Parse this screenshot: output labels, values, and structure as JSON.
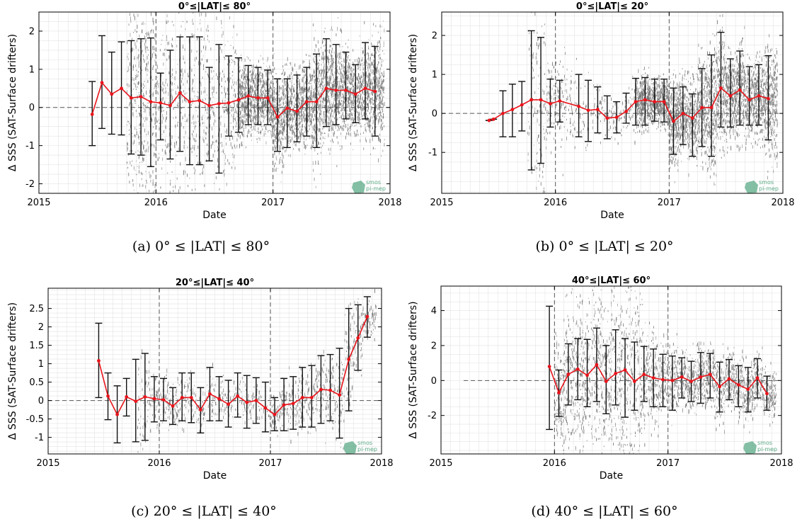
{
  "figure": {
    "captions": [
      "(a) 0° ≤ |LAT| ≤ 80°",
      "(b) 0° ≤ |LAT| ≤ 20°",
      "(c) 20° ≤ |LAT| ≤ 40°",
      "(d) 40° ≤ |LAT| ≤ 60°"
    ],
    "logo_text": [
      "smos",
      "pi-mep"
    ],
    "colors": {
      "line": "#e8141b",
      "errorbar": "#111111",
      "scatter": "#6e6e6e",
      "grid": "#e3e3e3",
      "logo": "#5aa985"
    }
  },
  "chart_data": [
    {
      "type": "line",
      "title": "0°≤|LAT|≤ 80°",
      "xlabel": "Date",
      "ylabel": "Δ SSS (SAT-Surface drifters)",
      "xlim": [
        "2015-01-01",
        "2018-01-01"
      ],
      "ylim": [
        -2.25,
        2.5
      ],
      "xticks": [
        "2015",
        "2016",
        "2017",
        "2018"
      ],
      "yticks": [
        -2,
        -1,
        0,
        1,
        2
      ],
      "ytick_labels": [
        "-2",
        "-1",
        "0",
        "1",
        "2"
      ],
      "grid": true,
      "vlines": [
        "2016-01-01",
        "2017-01-01"
      ],
      "hline": 0,
      "series": [
        {
          "x": [
            "2015-06-15",
            "2015-07-15",
            "2015-08-15",
            "2015-09-15",
            "2015-10-15",
            "2015-11-15",
            "2015-12-15",
            "2016-01-15",
            "2016-02-15",
            "2016-03-15",
            "2016-04-15",
            "2016-05-15",
            "2016-06-15",
            "2016-07-15",
            "2016-08-15",
            "2016-09-15",
            "2016-10-15",
            "2016-11-15",
            "2016-12-15",
            "2017-01-15",
            "2017-02-15",
            "2017-03-15",
            "2017-04-15",
            "2017-05-15",
            "2017-06-15",
            "2017-07-15",
            "2017-08-15",
            "2017-09-15",
            "2017-10-15",
            "2017-11-15"
          ],
          "y": [
            -0.18,
            0.65,
            0.35,
            0.5,
            0.25,
            0.28,
            0.15,
            0.12,
            0.05,
            0.38,
            0.15,
            0.18,
            0.05,
            0.1,
            0.12,
            0.2,
            0.3,
            0.25,
            0.25,
            -0.25,
            -0.02,
            -0.1,
            0.15,
            0.15,
            0.5,
            0.45,
            0.45,
            0.35,
            0.5,
            0.42
          ],
          "err_low": [
            -1.0,
            -0.55,
            -0.7,
            -0.72,
            -1.22,
            -1.25,
            -1.55,
            -0.85,
            -1.35,
            -1.15,
            -1.5,
            -1.5,
            -1.4,
            -1.72,
            -0.75,
            -0.65,
            -0.45,
            -0.45,
            -0.45,
            -1.15,
            -1.05,
            -0.9,
            -0.75,
            -1.05,
            -0.5,
            -0.45,
            -0.3,
            -0.4,
            -0.3,
            -0.75
          ],
          "err_high": [
            0.68,
            1.88,
            1.45,
            1.72,
            1.75,
            1.8,
            1.82,
            0.9,
            1.5,
            1.85,
            1.85,
            1.85,
            1.05,
            1.65,
            1.35,
            1.3,
            1.1,
            1.05,
            0.98,
            0.75,
            0.75,
            0.85,
            1.05,
            1.4,
            1.8,
            1.65,
            1.45,
            1.12,
            1.7,
            1.6
          ]
        }
      ]
    },
    {
      "type": "line",
      "title": "0°≤|LAT|≤ 20°",
      "xlabel": "Date",
      "ylabel": "Δ SSS (SAT-Surface drifters)",
      "xlim": [
        "2015-01-01",
        "2018-01-01"
      ],
      "ylim": [
        -2.05,
        2.6
      ],
      "xticks": [
        "2015",
        "2016",
        "2017",
        "2018"
      ],
      "yticks": [
        -1,
        0,
        1,
        2
      ],
      "ytick_labels": [
        "-1",
        "0",
        "1",
        "2"
      ],
      "grid": true,
      "vlines": [
        "2016-01-01",
        "2017-01-01"
      ],
      "hline": 0,
      "series": [
        {
          "x": [
            "2015-06-01",
            "2015-06-15",
            "2015-07-15",
            "2015-08-15",
            "2015-09-15",
            "2015-10-15",
            "2015-11-15",
            "2015-12-15",
            "2016-01-15",
            "2016-03-15",
            "2016-04-15",
            "2016-05-15",
            "2016-06-15",
            "2016-07-15",
            "2016-08-15",
            "2016-09-15",
            "2016-10-15",
            "2016-11-15",
            "2016-12-15",
            "2017-01-15",
            "2017-02-15",
            "2017-03-15",
            "2017-04-15",
            "2017-05-15",
            "2017-06-15",
            "2017-07-15",
            "2017-08-15",
            "2017-09-15",
            "2017-10-15",
            "2017-11-15"
          ],
          "y": [
            -0.18,
            -0.15,
            0.0,
            0.1,
            0.22,
            0.35,
            0.35,
            0.25,
            0.32,
            0.18,
            0.08,
            0.1,
            -0.12,
            -0.1,
            0.05,
            0.3,
            0.35,
            0.3,
            0.3,
            -0.2,
            0.0,
            -0.12,
            0.15,
            0.15,
            0.65,
            0.45,
            0.6,
            0.35,
            0.45,
            0.38
          ],
          "err_low": [
            -0.18,
            -0.15,
            -0.6,
            -0.6,
            -0.45,
            -1.45,
            -1.28,
            -0.35,
            -0.22,
            -0.6,
            -0.72,
            -0.5,
            -0.65,
            -0.5,
            -0.25,
            -0.3,
            -0.3,
            -0.2,
            -0.22,
            -1.05,
            -0.8,
            -1.1,
            -0.85,
            -1.1,
            -0.35,
            -0.35,
            -0.3,
            -0.3,
            -0.3,
            -0.68
          ],
          "err_high": [
            -0.18,
            -0.15,
            0.58,
            0.75,
            0.82,
            2.12,
            1.95,
            0.88,
            0.85,
            1.0,
            0.85,
            0.68,
            0.45,
            0.3,
            0.52,
            0.9,
            0.92,
            0.88,
            0.88,
            0.65,
            0.68,
            0.5,
            1.15,
            1.5,
            2.08,
            1.4,
            1.6,
            1.2,
            1.25,
            1.48
          ]
        }
      ]
    },
    {
      "type": "line",
      "title": "20°≤|LAT|≤ 40°",
      "xlabel": "Date",
      "ylabel": "Δ SSS (SAT-Surface drifters)",
      "xlim": [
        "2015-01-01",
        "2018-01-01"
      ],
      "ylim": [
        -1.45,
        3.05
      ],
      "xticks": [
        "2015",
        "2016",
        "2017",
        "2018"
      ],
      "yticks": [
        -1,
        -0.5,
        0,
        0.5,
        1,
        1.5,
        2,
        2.5
      ],
      "ytick_labels": [
        "-1",
        "-0.5",
        "0",
        "0.5",
        "1",
        "1.5",
        "2",
        "2.5"
      ],
      "grid": true,
      "vlines": [
        "2016-01-01",
        "2017-01-01"
      ],
      "hline": 0,
      "series": [
        {
          "x": [
            "2015-06-15",
            "2015-07-15",
            "2015-08-15",
            "2015-09-15",
            "2015-10-15",
            "2015-11-15",
            "2015-12-15",
            "2016-01-15",
            "2016-02-15",
            "2016-03-15",
            "2016-04-15",
            "2016-05-15",
            "2016-06-15",
            "2016-07-15",
            "2016-08-15",
            "2016-09-15",
            "2016-10-15",
            "2016-11-15",
            "2016-12-15",
            "2017-01-15",
            "2017-02-15",
            "2017-03-15",
            "2017-04-15",
            "2017-05-15",
            "2017-06-15",
            "2017-07-15",
            "2017-08-15",
            "2017-09-15",
            "2017-10-15",
            "2017-11-15"
          ],
          "y": [
            1.08,
            0.12,
            -0.38,
            0.1,
            -0.02,
            0.1,
            0.05,
            0.02,
            -0.15,
            0.08,
            0.08,
            -0.25,
            0.18,
            0.05,
            -0.1,
            0.12,
            -0.05,
            0.0,
            -0.2,
            -0.38,
            -0.12,
            -0.08,
            0.08,
            0.08,
            0.3,
            0.28,
            0.15,
            1.12,
            1.7,
            2.28
          ],
          "err_low": [
            0.08,
            -0.52,
            -1.15,
            -0.42,
            -1.12,
            -1.08,
            -0.58,
            -0.55,
            -0.65,
            -0.55,
            -0.6,
            -0.88,
            -0.55,
            -0.55,
            -0.72,
            -0.45,
            -0.75,
            -0.62,
            -0.85,
            -0.82,
            -0.82,
            -0.78,
            -0.72,
            -0.72,
            -0.62,
            -0.55,
            -1.02,
            -0.28,
            0.82,
            1.72
          ],
          "err_high": [
            2.1,
            0.75,
            0.4,
            0.6,
            1.12,
            1.28,
            0.65,
            0.6,
            0.35,
            0.75,
            0.75,
            0.35,
            0.9,
            0.65,
            0.55,
            0.75,
            0.68,
            0.62,
            0.5,
            0.08,
            0.6,
            0.65,
            0.9,
            0.95,
            1.22,
            1.25,
            1.42,
            2.5,
            2.6,
            2.82
          ]
        }
      ]
    },
    {
      "type": "line",
      "title": "40°≤|LAT|≤ 60°",
      "xlabel": "Date",
      "ylabel": "Δ SSS (SAT-Surface drifters)",
      "xlim": [
        "2015-01-01",
        "2018-01-01"
      ],
      "ylim": [
        -4.2,
        5.4
      ],
      "xticks": [
        "2015",
        "2016",
        "2017",
        "2018"
      ],
      "yticks": [
        -2,
        0,
        2,
        4
      ],
      "ytick_labels": [
        "-2",
        "0",
        "2",
        "4"
      ],
      "grid": true,
      "vlines": [
        "2016-01-01",
        "2017-01-01"
      ],
      "hline": 0,
      "series": [
        {
          "x": [
            "2015-12-15",
            "2016-01-15",
            "2016-02-15",
            "2016-03-15",
            "2016-04-15",
            "2016-05-15",
            "2016-06-15",
            "2016-07-15",
            "2016-08-15",
            "2016-09-15",
            "2016-10-15",
            "2016-11-15",
            "2016-12-15",
            "2017-01-15",
            "2017-02-15",
            "2017-03-15",
            "2017-04-15",
            "2017-05-15",
            "2017-06-15",
            "2017-07-15",
            "2017-08-15",
            "2017-09-15",
            "2017-10-15",
            "2017-11-15"
          ],
          "y": [
            0.8,
            -0.7,
            0.35,
            0.65,
            0.3,
            0.9,
            -0.05,
            0.4,
            0.6,
            -0.05,
            0.35,
            0.15,
            0.05,
            0.0,
            0.2,
            -0.05,
            0.2,
            0.35,
            -0.35,
            0.1,
            -0.25,
            -0.5,
            0.15,
            -0.75
          ],
          "err_low": [
            -2.8,
            -2.05,
            -1.4,
            -1.1,
            -1.5,
            -1.2,
            -1.9,
            -1.4,
            -2.1,
            -1.7,
            -1.2,
            -1.5,
            -1.5,
            -1.7,
            -1.0,
            -1.2,
            -1.3,
            -1.0,
            -1.8,
            -1.1,
            -1.5,
            -1.8,
            -1.0,
            -1.7
          ],
          "err_high": [
            4.25,
            0.6,
            2.1,
            2.4,
            2.35,
            3.0,
            2.0,
            2.9,
            2.4,
            2.2,
            1.95,
            1.8,
            1.5,
            1.4,
            1.3,
            1.1,
            1.6,
            1.55,
            1.05,
            1.2,
            0.85,
            0.75,
            1.25,
            0.25
          ]
        }
      ]
    }
  ]
}
